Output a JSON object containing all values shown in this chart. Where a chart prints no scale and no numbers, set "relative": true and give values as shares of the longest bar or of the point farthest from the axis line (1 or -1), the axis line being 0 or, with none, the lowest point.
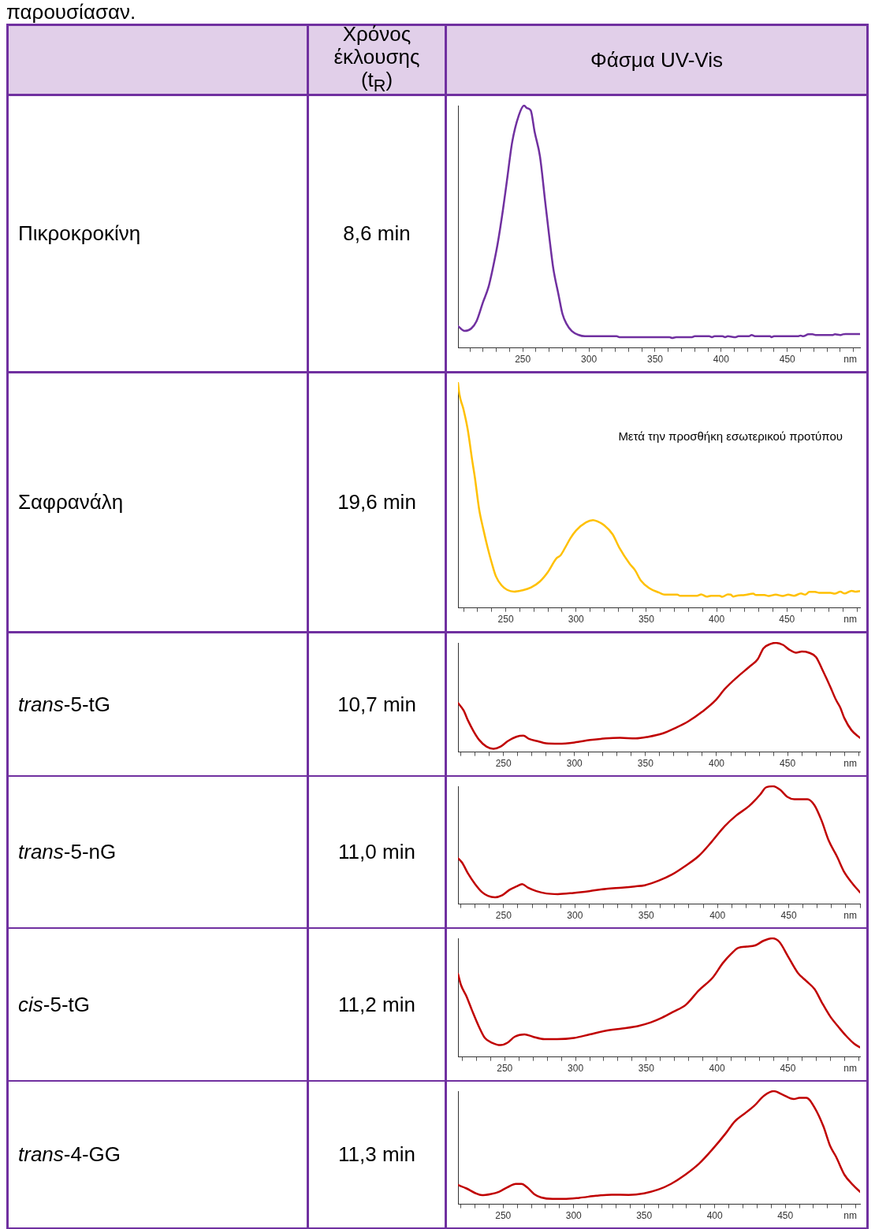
{
  "chart_data": [
    {
      "type": "other",
      "annotations": [
        "παρουσίασαν.",
        "Χρόνος έκλουσης (t$_{R}$)",
        "Φάσμα UV-Vis"
      ]
    },
    {
      "type": "line",
      "annotations": [
        "Πικροκροκίνη"
      ],
      "subtitle": "8,6 min",
      "relative": true,
      "color": "#7030a0",
      "xlabel": "nm",
      "xlim": [
        201,
        505
      ],
      "xticks": [
        {
          "value": 210,
          "label": null
        },
        {
          "value": 220,
          "label": null
        },
        {
          "value": 230,
          "label": null
        },
        {
          "value": 240,
          "label": null
        },
        250,
        {
          "value": 260,
          "label": null
        },
        {
          "value": 270,
          "label": null
        },
        {
          "value": 280,
          "label": null
        },
        {
          "value": 290,
          "label": null
        },
        300,
        {
          "value": 310,
          "label": null
        },
        {
          "value": 320,
          "label": null
        },
        {
          "value": 330,
          "label": null
        },
        {
          "value": 340,
          "label": null
        },
        350,
        {
          "value": 360,
          "label": null
        },
        {
          "value": 370,
          "label": null
        },
        {
          "value": 380,
          "label": null
        },
        {
          "value": 390,
          "label": null
        },
        400,
        {
          "value": 410,
          "label": null
        },
        {
          "value": 420,
          "label": null
        },
        {
          "value": 430,
          "label": null
        },
        {
          "value": 440,
          "label": null
        },
        450,
        {
          "value": 460,
          "label": null
        },
        {
          "value": 470,
          "label": null
        },
        {
          "value": 480,
          "label": null
        },
        {
          "value": 490,
          "label": null
        },
        {
          "value": 500,
          "label": null
        }
      ],
      "x": [
        201,
        206,
        211,
        215,
        220,
        224,
        227,
        231,
        235,
        238,
        242,
        247,
        251,
        253,
        256,
        259,
        263,
        267,
        270,
        273,
        277,
        280,
        283,
        287,
        292,
        297,
        321,
        323,
        361,
        363,
        366,
        378,
        380,
        391,
        393,
        395,
        401,
        403,
        405,
        411,
        413,
        421,
        423,
        426,
        437,
        438,
        440,
        458,
        460,
        462,
        466,
        469,
        472,
        484,
        486,
        490,
        492,
        494,
        505
      ],
      "values": [
        0.09,
        0.07,
        0.08,
        0.11,
        0.19,
        0.25,
        0.32,
        0.43,
        0.57,
        0.69,
        0.85,
        0.96,
        1,
        0.99,
        0.98,
        0.89,
        0.79,
        0.6,
        0.46,
        0.33,
        0.22,
        0.14,
        0.1,
        0.07,
        0.054,
        0.048,
        0.048,
        0.044,
        0.044,
        0.041,
        0.044,
        0.044,
        0.048,
        0.048,
        0.044,
        0.048,
        0.048,
        0.044,
        0.048,
        0.044,
        0.048,
        0.048,
        0.053,
        0.048,
        0.048,
        0.044,
        0.048,
        0.048,
        0.051,
        0.048,
        0.056,
        0.056,
        0.053,
        0.053,
        0.056,
        0.053,
        0.056,
        0.057,
        0.057
      ]
    },
    {
      "type": "line",
      "annotations": [
        "Σαφρανάλη",
        "Μετά την προσθήκη εσωτερικού προτύπου"
      ],
      "subtitle": "19,6 min",
      "relative": true,
      "color": "#ffc000",
      "xlabel": "nm",
      "xlim": [
        216,
        502
      ],
      "xticks": [
        {
          "value": 220,
          "label": null
        },
        {
          "value": 230,
          "label": null
        },
        {
          "value": 240,
          "label": null
        },
        250,
        {
          "value": 260,
          "label": null
        },
        {
          "value": 270,
          "label": null
        },
        {
          "value": 280,
          "label": null
        },
        {
          "value": 290,
          "label": null
        },
        300,
        {
          "value": 310,
          "label": null
        },
        {
          "value": 320,
          "label": null
        },
        {
          "value": 330,
          "label": null
        },
        {
          "value": 340,
          "label": null
        },
        350,
        {
          "value": 360,
          "label": null
        },
        {
          "value": 370,
          "label": null
        },
        {
          "value": 380,
          "label": null
        },
        {
          "value": 390,
          "label": null
        },
        400,
        {
          "value": 410,
          "label": null
        },
        {
          "value": 420,
          "label": null
        },
        {
          "value": 430,
          "label": null
        },
        {
          "value": 440,
          "label": null
        },
        450,
        {
          "value": 460,
          "label": null
        },
        {
          "value": 470,
          "label": null
        },
        {
          "value": 480,
          "label": null
        },
        {
          "value": 490,
          "label": null
        },
        {
          "value": 500,
          "label": null
        }
      ],
      "x": [
        216,
        217,
        220,
        223,
        226,
        228,
        231,
        234,
        237,
        240,
        243,
        247,
        251,
        256,
        259,
        262,
        268,
        274,
        280,
        286,
        289,
        292,
        296,
        300,
        307,
        312,
        315,
        320,
        326,
        331,
        338,
        342,
        346,
        352,
        359,
        363,
        372,
        374,
        386,
        389,
        393,
        396,
        402,
        404,
        408,
        410,
        412,
        414,
        420,
        426,
        428,
        434,
        437,
        442,
        447,
        451,
        455,
        460,
        463,
        466,
        470,
        473,
        481,
        484,
        488,
        491,
        496,
        499,
        502
      ],
      "values": [
        1,
        0.95,
        0.88,
        0.79,
        0.66,
        0.58,
        0.44,
        0.35,
        0.27,
        0.2,
        0.14,
        0.1,
        0.08,
        0.072,
        0.075,
        0.078,
        0.091,
        0.116,
        0.16,
        0.22,
        0.234,
        0.265,
        0.31,
        0.344,
        0.38,
        0.39,
        0.385,
        0.367,
        0.327,
        0.265,
        0.197,
        0.167,
        0.122,
        0.088,
        0.068,
        0.059,
        0.059,
        0.054,
        0.054,
        0.06,
        0.05,
        0.054,
        0.054,
        0.049,
        0.06,
        0.059,
        0.05,
        0.054,
        0.057,
        0.063,
        0.057,
        0.057,
        0.053,
        0.059,
        0.053,
        0.059,
        0.054,
        0.064,
        0.059,
        0.071,
        0.071,
        0.067,
        0.067,
        0.063,
        0.072,
        0.064,
        0.076,
        0.072,
        0.075
      ]
    },
    {
      "type": "line",
      "annotations": [
        "trans-5-tG"
      ],
      "subtitle": "10,7 min",
      "relative": true,
      "color": "#c00000",
      "xlabel": "nm",
      "xlim": [
        218,
        501
      ],
      "xticks": [
        {
          "value": 220,
          "label": null
        },
        {
          "value": 230,
          "label": null
        },
        {
          "value": 240,
          "label": null
        },
        250,
        {
          "value": 260,
          "label": null
        },
        {
          "value": 270,
          "label": null
        },
        {
          "value": 280,
          "label": null
        },
        {
          "value": 290,
          "label": null
        },
        300,
        {
          "value": 310,
          "label": null
        },
        {
          "value": 320,
          "label": null
        },
        {
          "value": 330,
          "label": null
        },
        {
          "value": 340,
          "label": null
        },
        350,
        {
          "value": 360,
          "label": null
        },
        {
          "value": 370,
          "label": null
        },
        {
          "value": 380,
          "label": null
        },
        {
          "value": 390,
          "label": null
        },
        400,
        {
          "value": 410,
          "label": null
        },
        {
          "value": 420,
          "label": null
        },
        {
          "value": 430,
          "label": null
        },
        {
          "value": 440,
          "label": null
        },
        450,
        {
          "value": 460,
          "label": null
        },
        {
          "value": 470,
          "label": null
        },
        {
          "value": 480,
          "label": null
        },
        {
          "value": 490,
          "label": null
        },
        {
          "value": 500,
          "label": null
        }
      ],
      "x": [
        218,
        222,
        225,
        229,
        233,
        238,
        243,
        248,
        253,
        259,
        264,
        268,
        274,
        280,
        289,
        300,
        311,
        322,
        332,
        343,
        352,
        362,
        371,
        380,
        390,
        399,
        406,
        414,
        423,
        429,
        433,
        438,
        442,
        447,
        451,
        456,
        460,
        465,
        470,
        475,
        480,
        484,
        487,
        490,
        495,
        501
      ],
      "values": [
        0.45,
        0.38,
        0.29,
        0.19,
        0.11,
        0.05,
        0.03,
        0.05,
        0.1,
        0.14,
        0.15,
        0.12,
        0.1,
        0.08,
        0.077,
        0.088,
        0.11,
        0.125,
        0.13,
        0.125,
        0.14,
        0.17,
        0.22,
        0.28,
        0.37,
        0.47,
        0.58,
        0.68,
        0.78,
        0.85,
        0.95,
        0.99,
        1,
        0.98,
        0.94,
        0.91,
        0.92,
        0.91,
        0.87,
        0.74,
        0.6,
        0.48,
        0.41,
        0.31,
        0.2,
        0.13
      ]
    },
    {
      "type": "line",
      "annotations": [
        "trans-5-nG"
      ],
      "subtitle": "11,0 min",
      "relative": true,
      "color": "#c00000",
      "xlabel": "nm",
      "xlim": [
        218,
        500
      ],
      "xticks": [
        {
          "value": 220,
          "label": null
        },
        {
          "value": 230,
          "label": null
        },
        {
          "value": 240,
          "label": null
        },
        250,
        {
          "value": 260,
          "label": null
        },
        {
          "value": 270,
          "label": null
        },
        {
          "value": 280,
          "label": null
        },
        {
          "value": 290,
          "label": null
        },
        300,
        {
          "value": 310,
          "label": null
        },
        {
          "value": 320,
          "label": null
        },
        {
          "value": 330,
          "label": null
        },
        {
          "value": 340,
          "label": null
        },
        350,
        {
          "value": 360,
          "label": null
        },
        {
          "value": 370,
          "label": null
        },
        {
          "value": 380,
          "label": null
        },
        {
          "value": 390,
          "label": null
        },
        400,
        {
          "value": 410,
          "label": null
        },
        {
          "value": 420,
          "label": null
        },
        {
          "value": 430,
          "label": null
        },
        {
          "value": 440,
          "label": null
        },
        450,
        {
          "value": 460,
          "label": null
        },
        {
          "value": 470,
          "label": null
        },
        {
          "value": 480,
          "label": null
        },
        {
          "value": 490,
          "label": null
        },
        {
          "value": 500,
          "label": null
        }
      ],
      "x": [
        218,
        221,
        225,
        230,
        235,
        239,
        244,
        249,
        254,
        259,
        263,
        267,
        273,
        280,
        288,
        299,
        310,
        322,
        333,
        342,
        349,
        359,
        368,
        377,
        387,
        396,
        405,
        413,
        422,
        430,
        434,
        439,
        444,
        449,
        454,
        459,
        463,
        468,
        473,
        478,
        484,
        489,
        495,
        500
      ],
      "values": [
        0.39,
        0.35,
        0.26,
        0.17,
        0.1,
        0.07,
        0.058,
        0.075,
        0.12,
        0.15,
        0.17,
        0.14,
        0.11,
        0.09,
        0.085,
        0.095,
        0.11,
        0.13,
        0.14,
        0.15,
        0.16,
        0.2,
        0.25,
        0.32,
        0.41,
        0.53,
        0.66,
        0.75,
        0.83,
        0.93,
        0.99,
        1,
        0.97,
        0.91,
        0.89,
        0.89,
        0.89,
        0.84,
        0.71,
        0.54,
        0.4,
        0.27,
        0.17,
        0.1
      ]
    },
    {
      "type": "line",
      "annotations": [
        "cis-5-tG"
      ],
      "subtitle": "11,2 min",
      "relative": true,
      "color": "#c00000",
      "xlabel": "nm",
      "xlim": [
        217,
        501
      ],
      "xticks": [
        {
          "value": 220,
          "label": null
        },
        {
          "value": 230,
          "label": null
        },
        {
          "value": 240,
          "label": null
        },
        250,
        {
          "value": 260,
          "label": null
        },
        {
          "value": 270,
          "label": null
        },
        {
          "value": 280,
          "label": null
        },
        {
          "value": 290,
          "label": null
        },
        300,
        {
          "value": 310,
          "label": null
        },
        {
          "value": 320,
          "label": null
        },
        {
          "value": 330,
          "label": null
        },
        {
          "value": 340,
          "label": null
        },
        350,
        {
          "value": 360,
          "label": null
        },
        {
          "value": 370,
          "label": null
        },
        {
          "value": 380,
          "label": null
        },
        {
          "value": 390,
          "label": null
        },
        400,
        {
          "value": 410,
          "label": null
        },
        {
          "value": 420,
          "label": null
        },
        {
          "value": 430,
          "label": null
        },
        {
          "value": 440,
          "label": null
        },
        450,
        {
          "value": 460,
          "label": null
        },
        {
          "value": 470,
          "label": null
        },
        {
          "value": 480,
          "label": null
        },
        {
          "value": 490,
          "label": null
        },
        {
          "value": 500,
          "label": null
        }
      ],
      "x": [
        217,
        219,
        223,
        227,
        232,
        236,
        241,
        247,
        252,
        257,
        264,
        270,
        278,
        287,
        299,
        310,
        321,
        333,
        344,
        353,
        361,
        369,
        378,
        387,
        397,
        404,
        410,
        415,
        421,
        427,
        433,
        439,
        444,
        450,
        457,
        463,
        469,
        474,
        480,
        486,
        491,
        497,
        501
      ],
      "values": [
        0.7,
        0.61,
        0.51,
        0.39,
        0.25,
        0.16,
        0.12,
        0.1,
        0.12,
        0.17,
        0.19,
        0.17,
        0.15,
        0.15,
        0.16,
        0.19,
        0.22,
        0.24,
        0.26,
        0.29,
        0.33,
        0.38,
        0.44,
        0.56,
        0.67,
        0.79,
        0.87,
        0.92,
        0.93,
        0.94,
        0.98,
        1,
        0.97,
        0.85,
        0.71,
        0.64,
        0.57,
        0.46,
        0.34,
        0.25,
        0.18,
        0.11,
        0.08
      ]
    },
    {
      "type": "line",
      "annotations": [
        "trans-4-GG"
      ],
      "subtitle": "11,3 min",
      "relative": true,
      "color": "#c00000",
      "xlabel": "nm",
      "xlim": [
        218,
        503
      ],
      "xticks": [
        {
          "value": 220,
          "label": null
        },
        {
          "value": 230,
          "label": null
        },
        {
          "value": 240,
          "label": null
        },
        250,
        {
          "value": 260,
          "label": null
        },
        {
          "value": 270,
          "label": null
        },
        {
          "value": 280,
          "label": null
        },
        {
          "value": 290,
          "label": null
        },
        300,
        {
          "value": 310,
          "label": null
        },
        {
          "value": 320,
          "label": null
        },
        {
          "value": 330,
          "label": null
        },
        {
          "value": 340,
          "label": null
        },
        350,
        {
          "value": 360,
          "label": null
        },
        {
          "value": 370,
          "label": null
        },
        {
          "value": 380,
          "label": null
        },
        {
          "value": 390,
          "label": null
        },
        400,
        {
          "value": 410,
          "label": null
        },
        {
          "value": 420,
          "label": null
        },
        {
          "value": 430,
          "label": null
        },
        {
          "value": 440,
          "label": null
        },
        450,
        {
          "value": 460,
          "label": null
        },
        {
          "value": 470,
          "label": null
        },
        {
          "value": 480,
          "label": null
        },
        {
          "value": 490,
          "label": null
        },
        {
          "value": 500,
          "label": null
        }
      ],
      "x": [
        218,
        224,
        230,
        235,
        241,
        247,
        253,
        259,
        263,
        267,
        272,
        277,
        285,
        293,
        304,
        316,
        327,
        339,
        350,
        360,
        369,
        379,
        389,
        398,
        408,
        414,
        421,
        428,
        435,
        442,
        448,
        456,
        460,
        465,
        471,
        477,
        482,
        486,
        492,
        498,
        503
      ],
      "values": [
        0.17,
        0.14,
        0.1,
        0.08,
        0.09,
        0.11,
        0.15,
        0.18,
        0.18,
        0.15,
        0.09,
        0.06,
        0.047,
        0.047,
        0.057,
        0.075,
        0.085,
        0.083,
        0.097,
        0.13,
        0.18,
        0.26,
        0.36,
        0.48,
        0.63,
        0.73,
        0.8,
        0.87,
        0.96,
        1,
        0.97,
        0.93,
        0.94,
        0.94,
        0.85,
        0.69,
        0.51,
        0.42,
        0.26,
        0.17,
        0.11
      ]
    }
  ]
}
